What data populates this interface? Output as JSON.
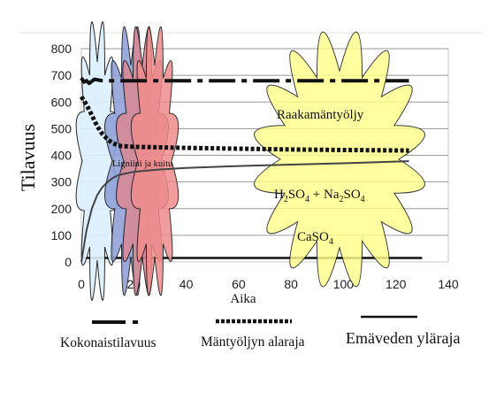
{
  "chart_data": {
    "type": "line",
    "title": "",
    "xlabel": "Aika",
    "ylabel": "Tilavuus",
    "xlim": [
      0,
      140
    ],
    "ylim": [
      0,
      800
    ],
    "x_ticks": [
      "0",
      "20",
      "40",
      "60",
      "80",
      "100",
      "120",
      "140"
    ],
    "y_ticks": [
      "0",
      "100",
      "200",
      "300",
      "400",
      "500",
      "600",
      "700",
      "800"
    ],
    "grid": "horizontal",
    "legend_position": "bottom",
    "series": [
      {
        "name": "Kokonaistilavuus",
        "style": "dash-dot",
        "x": [
          0,
          1,
          2,
          3,
          5,
          8,
          20,
          40,
          60,
          80,
          100,
          125
        ],
        "y": [
          690,
          675,
          680,
          670,
          685,
          680,
          680,
          680,
          680,
          680,
          680,
          680
        ]
      },
      {
        "name": "Mäntyöljyn alaraja",
        "style": "dotted",
        "x": [
          0,
          2,
          4,
          6,
          8,
          10,
          12,
          15,
          20,
          30,
          40,
          60,
          80,
          100,
          125
        ],
        "y": [
          620,
          590,
          550,
          510,
          480,
          460,
          445,
          435,
          432,
          430,
          428,
          425,
          422,
          420,
          418
        ]
      },
      {
        "name": "Emäveden yläraja",
        "style": "solid",
        "x": [
          0,
          2,
          4,
          6,
          8,
          10,
          12,
          14,
          16,
          20,
          25,
          30,
          40,
          60,
          80,
          100,
          125
        ],
        "y": [
          0,
          120,
          200,
          250,
          280,
          300,
          315,
          325,
          330,
          338,
          343,
          347,
          353,
          360,
          365,
          370,
          378
        ]
      },
      {
        "name": "",
        "style": "solid",
        "x": [
          0,
          130
        ],
        "y": [
          15,
          15
        ]
      }
    ],
    "annotations": {
      "lignin": "Ligniini ja kuitu",
      "tall_oil": "Raakamäntyöljy",
      "acid_h2": "H",
      "acid_2": "2",
      "acid_so4": "SO",
      "acid_4": "4",
      "plus": " + Na",
      "na_2": "2",
      "na_so4": "SO",
      "na_4": "4",
      "caso_ca": "CaSO",
      "caso_4": "4"
    },
    "colors": {
      "cloud_light_blue": "#dcefff",
      "cloud_blue": "#8fa0d8",
      "cloud_red": "#d88a96",
      "cloud_pink": "#f08c8c",
      "cloud_yellow": "#ffff8a"
    }
  }
}
